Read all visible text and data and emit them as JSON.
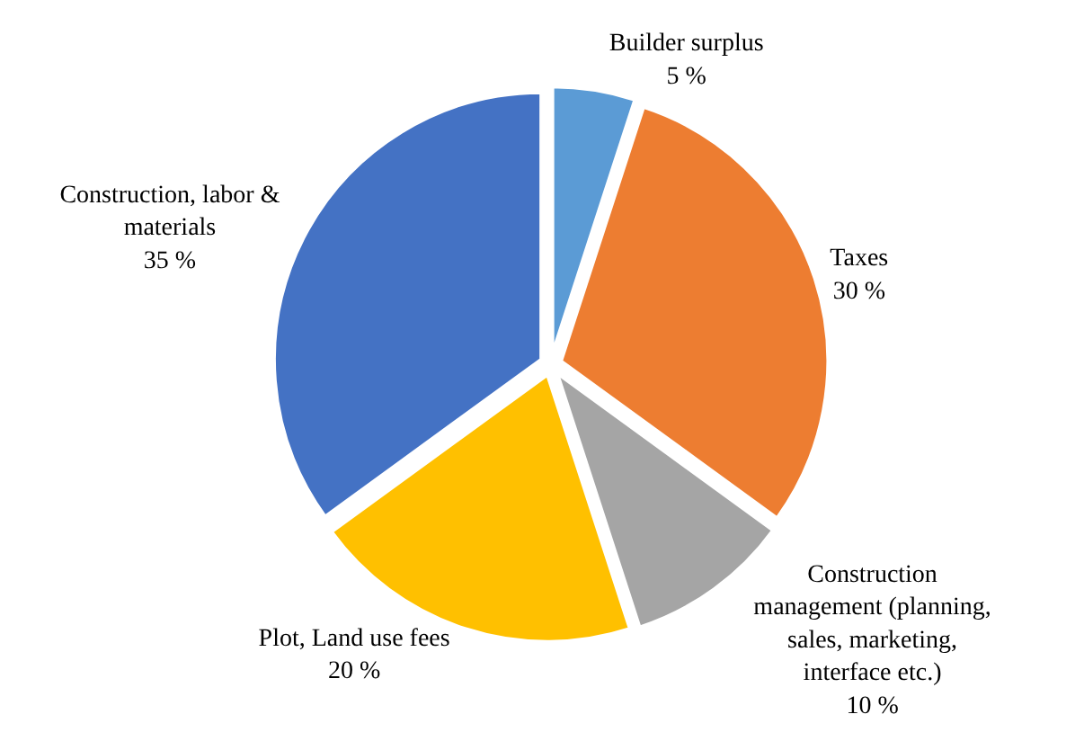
{
  "chart_data": {
    "type": "pie",
    "categories": [
      "Builder surplus",
      "Taxes",
      "Construction management (planning, sales, marketing, interface etc.)",
      "Plot, Land use fees",
      "Construction, labor & materials"
    ],
    "values": [
      5,
      30,
      10,
      20,
      35
    ],
    "value_labels": [
      "5 %",
      "30 %",
      "10 %",
      "20 %",
      "35 %"
    ],
    "colors": [
      "#5b9bd5",
      "#ed7d31",
      "#a5a5a5",
      "#ffc000",
      "#4472c4"
    ],
    "legend": false
  }
}
